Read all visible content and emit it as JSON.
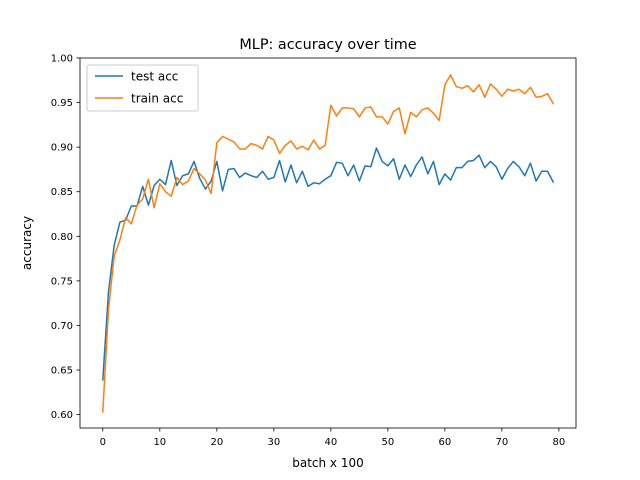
{
  "chart_data": {
    "type": "line",
    "title": "MLP: accuracy over time",
    "xlabel": "batch x 100",
    "ylabel": "accuracy",
    "xlim": [
      -4,
      83
    ],
    "ylim": [
      0.585,
      1.0
    ],
    "xticks": [
      0,
      10,
      20,
      30,
      40,
      50,
      60,
      70,
      80
    ],
    "xtick_labels": [
      "0",
      "10",
      "20",
      "30",
      "40",
      "50",
      "60",
      "70",
      "80"
    ],
    "yticks": [
      0.6,
      0.65,
      0.7,
      0.75,
      0.8,
      0.85,
      0.9,
      0.95,
      1.0
    ],
    "ytick_labels": [
      "0.60",
      "0.65",
      "0.70",
      "0.75",
      "0.80",
      "0.85",
      "0.90",
      "0.95",
      "1.00"
    ],
    "grid": false,
    "legend": "upper-left",
    "series": [
      {
        "name": "test acc",
        "color": "#1f77b4",
        "values": [
          0.639,
          0.738,
          0.79,
          0.816,
          0.818,
          0.834,
          0.834,
          0.856,
          0.835,
          0.857,
          0.864,
          0.858,
          0.885,
          0.857,
          0.868,
          0.87,
          0.884,
          0.865,
          0.853,
          0.862,
          0.884,
          0.851,
          0.875,
          0.876,
          0.866,
          0.871,
          0.868,
          0.866,
          0.873,
          0.864,
          0.866,
          0.885,
          0.861,
          0.88,
          0.86,
          0.873,
          0.856,
          0.86,
          0.859,
          0.864,
          0.868,
          0.883,
          0.882,
          0.868,
          0.88,
          0.862,
          0.879,
          0.878,
          0.899,
          0.884,
          0.879,
          0.887,
          0.864,
          0.88,
          0.867,
          0.88,
          0.889,
          0.87,
          0.884,
          0.858,
          0.87,
          0.863,
          0.877,
          0.877,
          0.884,
          0.885,
          0.891,
          0.877,
          0.884,
          0.878,
          0.864,
          0.876,
          0.884,
          0.878,
          0.868,
          0.882,
          0.862,
          0.873,
          0.873,
          0.861
        ]
      },
      {
        "name": "train acc",
        "color": "#ff7f0e",
        "values": [
          0.603,
          0.718,
          0.778,
          0.796,
          0.821,
          0.814,
          0.835,
          0.842,
          0.864,
          0.832,
          0.859,
          0.85,
          0.845,
          0.866,
          0.858,
          0.862,
          0.876,
          0.87,
          0.863,
          0.848,
          0.905,
          0.912,
          0.909,
          0.906,
          0.898,
          0.898,
          0.904,
          0.902,
          0.898,
          0.912,
          0.908,
          0.893,
          0.902,
          0.907,
          0.898,
          0.901,
          0.897,
          0.908,
          0.898,
          0.902,
          0.947,
          0.935,
          0.944,
          0.944,
          0.943,
          0.934,
          0.944,
          0.945,
          0.934,
          0.934,
          0.926,
          0.94,
          0.944,
          0.915,
          0.939,
          0.934,
          0.942,
          0.944,
          0.938,
          0.93,
          0.97,
          0.981,
          0.968,
          0.966,
          0.969,
          0.962,
          0.97,
          0.956,
          0.971,
          0.965,
          0.957,
          0.965,
          0.963,
          0.965,
          0.96,
          0.967,
          0.956,
          0.957,
          0.96,
          0.949
        ]
      }
    ]
  }
}
